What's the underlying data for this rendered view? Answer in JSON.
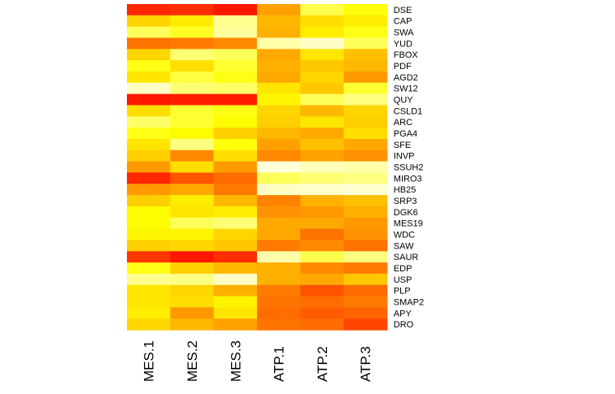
{
  "chart_data": {
    "type": "heatmap",
    "title": "",
    "xlabel": "",
    "ylabel": "",
    "columns": [
      "MES.1",
      "MES.2",
      "MES.3",
      "ATP.1",
      "ATP.2",
      "ATP.3"
    ],
    "rows": [
      "DSE",
      "CAP",
      "SWA",
      "YUD",
      "FBOX",
      "PDF",
      "AGD2",
      "SW12",
      "QUY",
      "CSLD1",
      "ARC",
      "PGA4",
      "SFE",
      "INVP",
      "SSUH2",
      "MIRO3",
      "HB25",
      "SRP3",
      "DGK6",
      "MES19",
      "WDC",
      "SAW",
      "SAUR",
      "EDP",
      "USP",
      "PLP",
      "SMAP2",
      "APY",
      "DRO"
    ],
    "colorscale": [
      "#FF0000",
      "#FF8000",
      "#FFFF00",
      "#FFFFE0"
    ],
    "values": [
      [
        0.1,
        0.12,
        0.06,
        0.42,
        0.78,
        0.68
      ],
      [
        0.55,
        0.62,
        0.88,
        0.48,
        0.58,
        0.62
      ],
      [
        0.8,
        0.72,
        0.9,
        0.46,
        0.62,
        0.7
      ],
      [
        0.3,
        0.32,
        0.36,
        0.92,
        0.96,
        0.8
      ],
      [
        0.56,
        0.84,
        0.8,
        0.44,
        0.6,
        0.5
      ],
      [
        0.7,
        0.58,
        0.74,
        0.46,
        0.52,
        0.48
      ],
      [
        0.6,
        0.76,
        0.7,
        0.44,
        0.56,
        0.4
      ],
      [
        0.96,
        0.84,
        0.82,
        0.6,
        0.52,
        0.74
      ],
      [
        0.06,
        0.08,
        0.08,
        0.64,
        0.8,
        0.86
      ],
      [
        0.58,
        0.74,
        0.7,
        0.56,
        0.48,
        0.56
      ],
      [
        0.82,
        0.74,
        0.66,
        0.54,
        0.6,
        0.54
      ],
      [
        0.7,
        0.66,
        0.54,
        0.48,
        0.44,
        0.58
      ],
      [
        0.6,
        0.86,
        0.68,
        0.42,
        0.5,
        0.44
      ],
      [
        0.54,
        0.36,
        0.58,
        0.36,
        0.42,
        0.38
      ],
      [
        0.4,
        0.58,
        0.4,
        0.99,
        0.94,
        0.92
      ],
      [
        0.1,
        0.22,
        0.28,
        0.8,
        0.84,
        0.86
      ],
      [
        0.4,
        0.44,
        0.32,
        0.96,
        0.97,
        0.98
      ],
      [
        0.54,
        0.62,
        0.48,
        0.34,
        0.46,
        0.5
      ],
      [
        0.66,
        0.6,
        0.62,
        0.38,
        0.4,
        0.46
      ],
      [
        0.66,
        0.8,
        0.84,
        0.44,
        0.44,
        0.4
      ],
      [
        0.64,
        0.64,
        0.56,
        0.44,
        0.3,
        0.38
      ],
      [
        0.54,
        0.56,
        0.52,
        0.32,
        0.36,
        0.3
      ],
      [
        0.14,
        0.06,
        0.12,
        0.92,
        0.78,
        0.86
      ],
      [
        0.7,
        0.54,
        0.48,
        0.46,
        0.36,
        0.32
      ],
      [
        0.88,
        0.86,
        0.96,
        0.46,
        0.44,
        0.52
      ],
      [
        0.6,
        0.56,
        0.46,
        0.32,
        0.22,
        0.28
      ],
      [
        0.6,
        0.58,
        0.64,
        0.3,
        0.28,
        0.32
      ],
      [
        0.62,
        0.4,
        0.6,
        0.28,
        0.24,
        0.26
      ],
      [
        0.56,
        0.48,
        0.42,
        0.3,
        0.28,
        0.18
      ]
    ]
  }
}
